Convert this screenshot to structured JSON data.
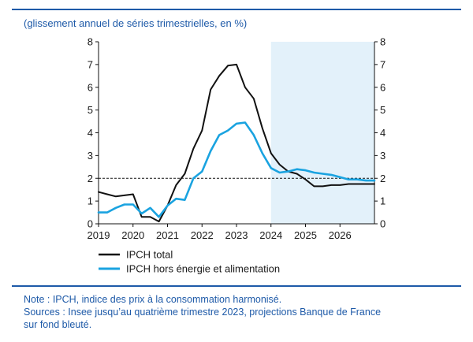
{
  "subtitle": "(glissement annuel de séries trimestrielles, en %)",
  "colors": {
    "rule": "#1e5aa8",
    "text_blue": "#1e5aa8",
    "series_total": "#111111",
    "series_core": "#1aa3e0",
    "projection_fill": "#e3f1fa",
    "target_line": "#111111"
  },
  "chart_data": {
    "type": "line",
    "title": "",
    "xlabel": "",
    "ylabel": "",
    "ylim": [
      0,
      8
    ],
    "xlim": [
      2019,
      2027
    ],
    "yticks": [
      0,
      1,
      2,
      3,
      4,
      5,
      6,
      7,
      8
    ],
    "x_tick_labels": [
      "2019",
      "2020",
      "2021",
      "2022",
      "2023",
      "2024",
      "2025",
      "2026"
    ],
    "x_tick_values": [
      2019,
      2020,
      2021,
      2022,
      2023,
      2024,
      2025,
      2026
    ],
    "y_axis_right": true,
    "grid": false,
    "legend_placement": "bottom-left",
    "projection_start": 2024,
    "reference_line": 2,
    "x": [
      2019.0,
      2019.25,
      2019.5,
      2019.75,
      2020.0,
      2020.25,
      2020.5,
      2020.75,
      2021.0,
      2021.25,
      2021.5,
      2021.75,
      2022.0,
      2022.25,
      2022.5,
      2022.75,
      2023.0,
      2023.25,
      2023.5,
      2023.75,
      2024.0,
      2024.25,
      2024.5,
      2024.75,
      2025.0,
      2025.25,
      2025.5,
      2025.75,
      2026.0,
      2026.25,
      2026.5,
      2026.75,
      2027.0
    ],
    "series": [
      {
        "name": "IPCH total",
        "values": [
          1.4,
          1.3,
          1.2,
          1.25,
          1.3,
          0.3,
          0.3,
          0.1,
          0.8,
          1.7,
          2.2,
          3.3,
          4.1,
          5.9,
          6.5,
          6.95,
          7.0,
          6.0,
          5.5,
          4.2,
          3.1,
          2.6,
          2.3,
          2.2,
          1.95,
          1.65,
          1.65,
          1.7,
          1.7,
          1.75,
          1.75,
          1.75,
          1.75
        ]
      },
      {
        "name": "IPCH hors énergie et alimentation",
        "values": [
          0.5,
          0.5,
          0.7,
          0.85,
          0.85,
          0.45,
          0.7,
          0.3,
          0.8,
          1.1,
          1.05,
          2.0,
          2.3,
          3.2,
          3.9,
          4.1,
          4.4,
          4.45,
          3.9,
          3.1,
          2.45,
          2.25,
          2.3,
          2.4,
          2.35,
          2.25,
          2.2,
          2.15,
          2.05,
          1.95,
          1.95,
          1.9,
          1.9
        ]
      }
    ]
  },
  "notes": {
    "line1": "Note : IPCH, indice des prix à la consommation harmonisé.",
    "line2": "Sources : Insee jusqu’au quatrième trimestre 2023, projections Banque de France",
    "line3": "sur fond bleuté."
  }
}
